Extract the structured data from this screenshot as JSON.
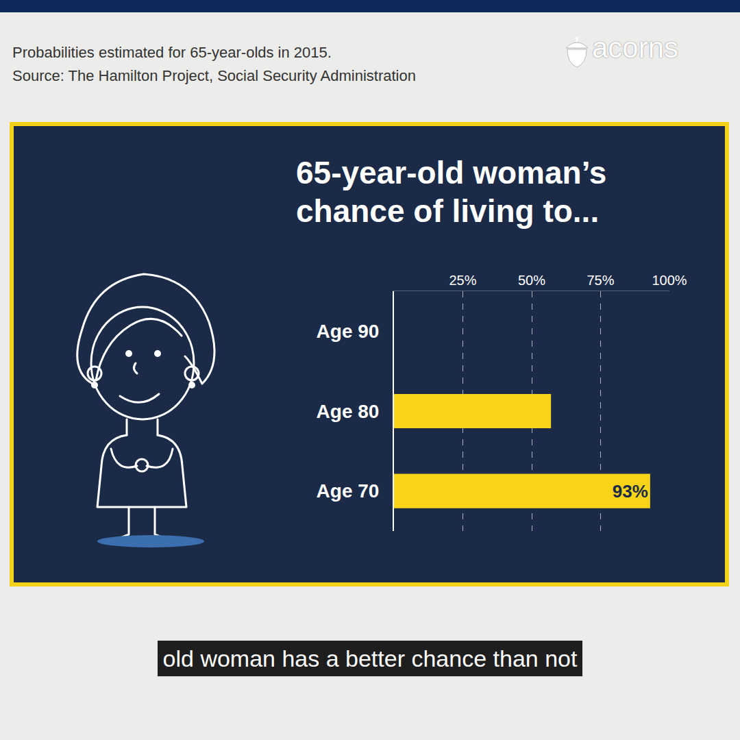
{
  "header": {
    "lines": [
      "Probabilities estimated for 65-year-olds in 2015.",
      "Source: The Hamilton Project, Social Security Administration"
    ],
    "brand": "acorns"
  },
  "caption": "old woman has a better chance than not",
  "chart_data": {
    "type": "bar",
    "orientation": "horizontal",
    "title": "65-year-old woman’s chance of living to...",
    "categories": [
      "Age 90",
      "Age 80",
      "Age 70"
    ],
    "values": [
      null,
      57,
      93
    ],
    "value_labels": [
      null,
      null,
      "93%"
    ],
    "data_labels": true,
    "color": "#f7d417",
    "xlim": [
      0,
      100
    ],
    "xticks": [
      {
        "value": 25,
        "label": "25%"
      },
      {
        "value": 50,
        "label": "50%"
      },
      {
        "value": 75,
        "label": "75%"
      },
      {
        "value": 100,
        "label": "100%"
      }
    ],
    "grid": true
  }
}
